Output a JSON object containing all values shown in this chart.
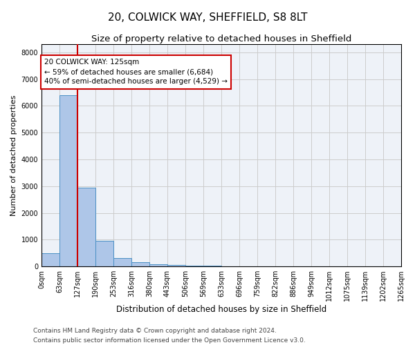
{
  "title1": "20, COLWICK WAY, SHEFFIELD, S8 8LT",
  "title2": "Size of property relative to detached houses in Sheffield",
  "xlabel": "Distribution of detached houses by size in Sheffield",
  "ylabel": "Number of detached properties",
  "bin_labels": [
    "0sqm",
    "63sqm",
    "127sqm",
    "190sqm",
    "253sqm",
    "316sqm",
    "380sqm",
    "443sqm",
    "506sqm",
    "569sqm",
    "633sqm",
    "696sqm",
    "759sqm",
    "822sqm",
    "886sqm",
    "949sqm",
    "1012sqm",
    "1075sqm",
    "1139sqm",
    "1202sqm",
    "1265sqm"
  ],
  "bar_values": [
    500,
    6400,
    2950,
    950,
    320,
    160,
    80,
    50,
    30,
    20,
    15,
    10,
    8,
    5,
    4,
    3,
    2,
    2,
    1,
    1
  ],
  "bar_color": "#aec6e8",
  "bar_edgecolor": "#4a90c4",
  "property_line_color": "#cc0000",
  "annotation_text": "20 COLWICK WAY: 125sqm\n← 59% of detached houses are smaller (6,684)\n40% of semi-detached houses are larger (4,529) →",
  "annotation_box_color": "#cc0000",
  "ylim": [
    0,
    8300
  ],
  "yticks": [
    0,
    1000,
    2000,
    3000,
    4000,
    5000,
    6000,
    7000,
    8000
  ],
  "grid_color": "#cccccc",
  "bg_color": "#eef2f8",
  "footer_line1": "Contains HM Land Registry data © Crown copyright and database right 2024.",
  "footer_line2": "Contains public sector information licensed under the Open Government Licence v3.0.",
  "title1_fontsize": 11,
  "title2_fontsize": 9.5,
  "xlabel_fontsize": 8.5,
  "ylabel_fontsize": 8,
  "tick_fontsize": 7,
  "annotation_fontsize": 7.5,
  "footer_fontsize": 6.5
}
